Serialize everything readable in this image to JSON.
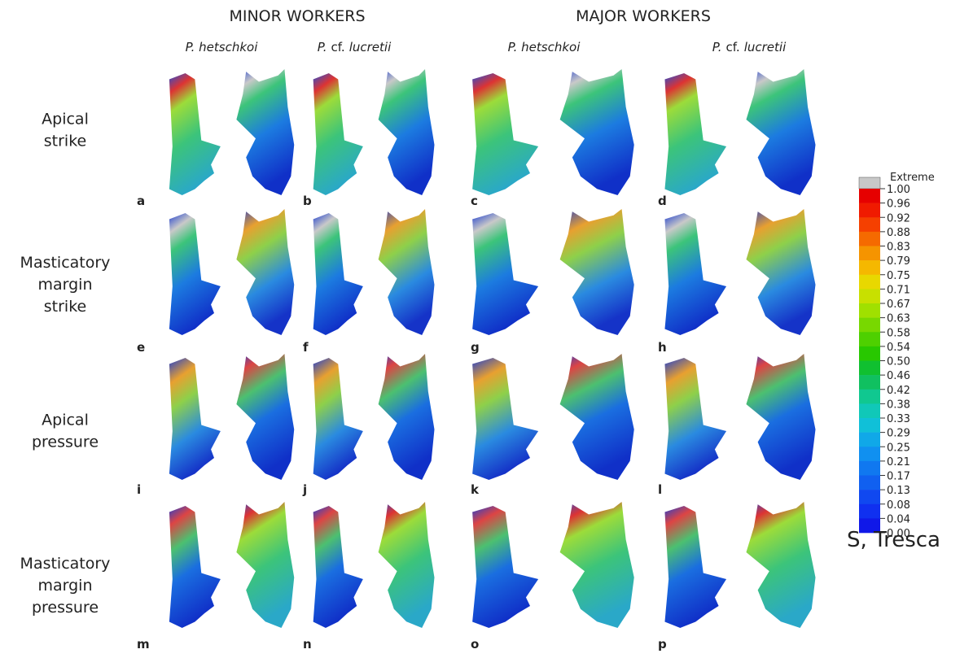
{
  "headers": {
    "minor": "MINOR WORKERS",
    "major": "MAJOR WORKERS"
  },
  "species": [
    {
      "parts": [
        "P. hetschkoi"
      ]
    },
    {
      "parts": [
        "P.",
        "cf.",
        "lucretii"
      ]
    },
    {
      "parts": [
        "P. hetschkoi"
      ]
    },
    {
      "parts": [
        "P.",
        "cf.",
        "lucretii"
      ]
    }
  ],
  "rows": [
    {
      "label": [
        "Apical",
        "strike"
      ],
      "panels": [
        "a",
        "b",
        "c",
        "d"
      ]
    },
    {
      "label": [
        "Masticatory",
        "margin",
        "strike"
      ],
      "panels": [
        "e",
        "f",
        "g",
        "h"
      ]
    },
    {
      "label": [
        "Apical",
        "pressure"
      ],
      "panels": [
        "i",
        "j",
        "k",
        "l"
      ]
    },
    {
      "label": [
        "Masticatory",
        "margin",
        "pressure"
      ],
      "panels": [
        "m",
        "n",
        "o",
        "p"
      ]
    }
  ],
  "colorbar": {
    "extreme": "Extreme",
    "ticks": [
      "1.00",
      "0.96",
      "0.92",
      "0.88",
      "0.83",
      "0.79",
      "0.75",
      "0.71",
      "0.67",
      "0.63",
      "0.58",
      "0.54",
      "0.50",
      "0.46",
      "0.42",
      "0.38",
      "0.33",
      "0.29",
      "0.25",
      "0.21",
      "0.17",
      "0.13",
      "0.08",
      "0.04",
      "0.00"
    ],
    "title": "S, Tresca"
  }
}
